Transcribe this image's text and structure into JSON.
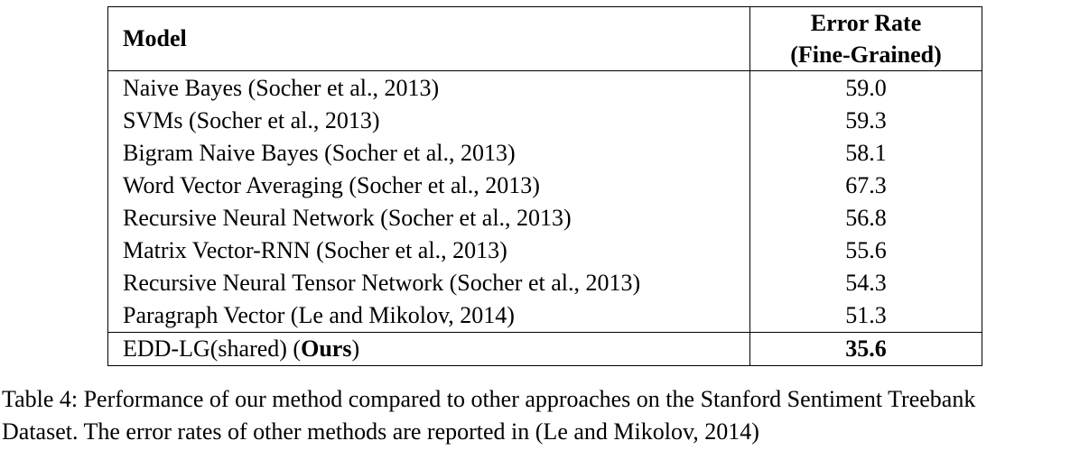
{
  "table": {
    "headers": {
      "model": "Model",
      "error_rate_line1": "Error Rate",
      "error_rate_line2": "(Fine-Grained)"
    },
    "rows": [
      {
        "model": "Naive Bayes (Socher et al., 2013)",
        "error_rate": "59.0"
      },
      {
        "model": "SVMs (Socher et al., 2013)",
        "error_rate": "59.3"
      },
      {
        "model": "Bigram Naive Bayes (Socher et al., 2013)",
        "error_rate": "58.1"
      },
      {
        "model": "Word Vector Averaging (Socher et al., 2013)",
        "error_rate": "67.3"
      },
      {
        "model": "Recursive Neural Network (Socher et al., 2013)",
        "error_rate": "56.8"
      },
      {
        "model": "Matrix Vector-RNN (Socher et al., 2013)",
        "error_rate": "55.6"
      },
      {
        "model": "Recursive Neural Tensor Network (Socher et al., 2013)",
        "error_rate": "54.3"
      },
      {
        "model": "Paragraph Vector (Le and Mikolov, 2014)",
        "error_rate": "51.3"
      }
    ],
    "ours": {
      "model_prefix": "EDD-LG(shared) (",
      "model_bold": "Ours",
      "model_suffix": ")",
      "error_rate": "35.6"
    }
  },
  "caption": {
    "line1": "Table 4: Performance of our method compared to other approaches on the Stanford Sentiment Treebank",
    "line2": "Dataset. The error rates of other methods are reported in (Le and Mikolov, 2014)"
  }
}
